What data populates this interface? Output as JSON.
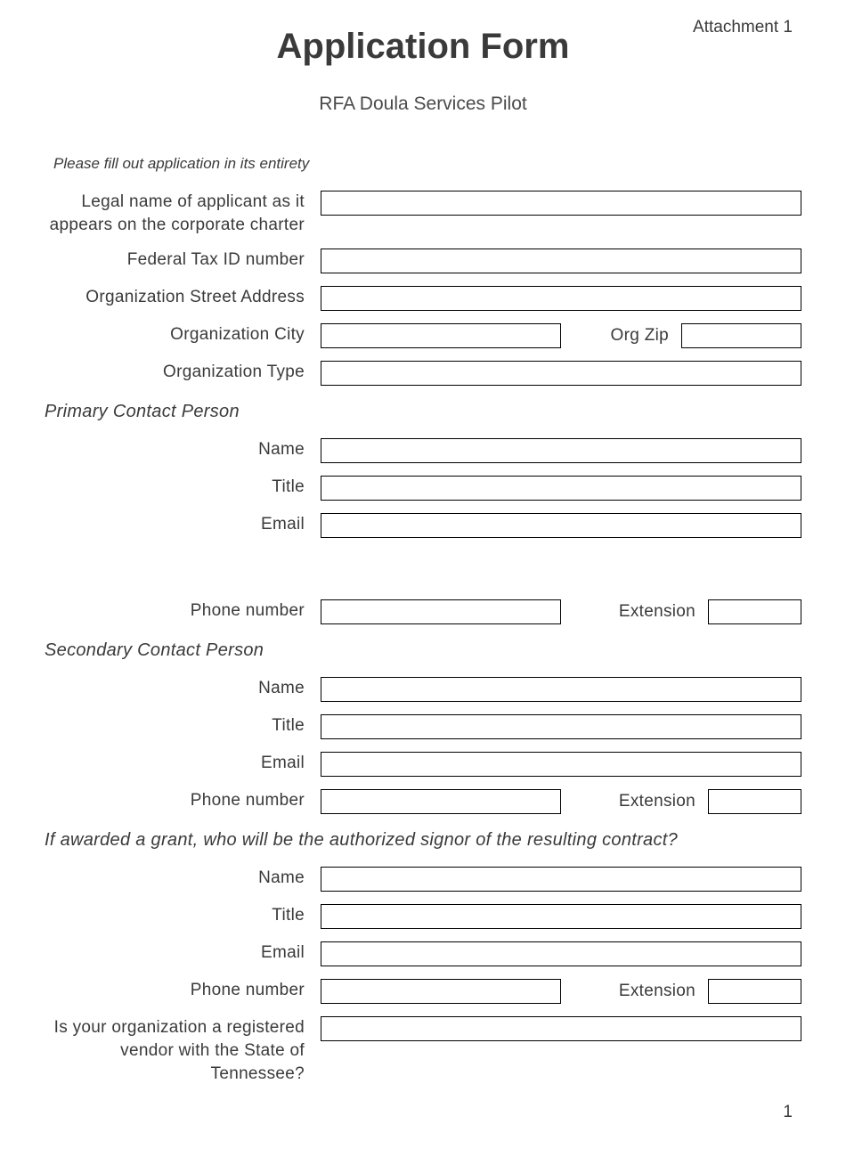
{
  "header": {
    "attachment": "Attachment 1",
    "title": "Application Form",
    "subtitle": "RFA Doula Services Pilot"
  },
  "instruction": "Please fill out application in its entirety",
  "org": {
    "legal_name_label": "Legal name of applicant as it appears on the corporate charter",
    "tax_id_label": "Federal Tax ID number",
    "street_label": "Organization Street Address",
    "city_label": "Organization City",
    "zip_label": "Org Zip",
    "type_label": "Organization Type"
  },
  "primary": {
    "heading": "Primary Contact Person",
    "name_label": "Name",
    "title_label": "Title",
    "email_label": "Email",
    "phone_label": "Phone number",
    "ext_label": "Extension"
  },
  "secondary": {
    "heading": "Secondary Contact Person",
    "name_label": "Name",
    "title_label": "Title",
    "email_label": "Email",
    "phone_label": "Phone number",
    "ext_label": "Extension"
  },
  "signor": {
    "heading": "If awarded a grant, who will be the authorized signor of the resulting contract?",
    "name_label": "Name",
    "title_label": "Title",
    "email_label": "Email",
    "phone_label": "Phone number",
    "ext_label": "Extension"
  },
  "vendor": {
    "label": "Is your organization a registered vendor with the State of Tennessee?"
  },
  "page_number": "1"
}
